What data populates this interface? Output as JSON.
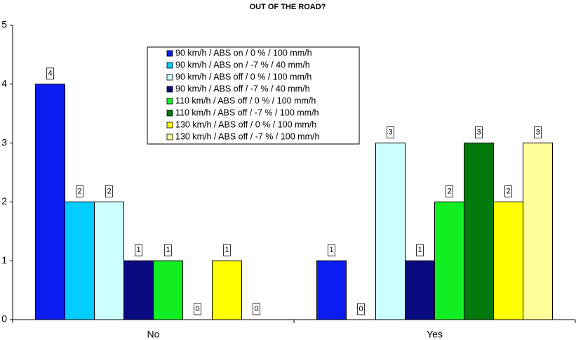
{
  "chart_data": {
    "type": "bar",
    "title": "OUT OF THE ROAD?",
    "categories": [
      "No",
      "Yes"
    ],
    "series": [
      {
        "name": "90 km/h / ABS on / 0 % / 100 mm/h",
        "color": "#0a1cf0",
        "values": [
          4,
          1
        ]
      },
      {
        "name": "90 km/h / ABS on / -7 % / 40 mm/h",
        "color": "#00ccff",
        "values": [
          2,
          0
        ]
      },
      {
        "name": "90 km/h / ABS off / 0 % / 100 mm/h",
        "color": "#ccffff",
        "values": [
          2,
          3
        ]
      },
      {
        "name": "90 km/h / ABS off / -7 % / 40 mm/h",
        "color": "#0a0a80",
        "values": [
          1,
          1
        ]
      },
      {
        "name": "110 km/h / ABS off / 0 % / 100 mm/h",
        "color": "#11ee22",
        "values": [
          1,
          2
        ]
      },
      {
        "name": "110 km/h / ABS off / -7 % / 100 mm/h",
        "color": "#007a0a",
        "values": [
          0,
          3
        ]
      },
      {
        "name": "130 km/h / ABS off / 0 % / 100 mm/h",
        "color": "#ffff00",
        "values": [
          1,
          2
        ]
      },
      {
        "name": "130 km/h / ABS off / -7 % / 100 mm/h",
        "color": "#ffff99",
        "values": [
          0,
          3
        ]
      }
    ],
    "ylim": [
      0,
      5
    ],
    "yticks": [
      0,
      1,
      2,
      3,
      4,
      5
    ],
    "grid": false,
    "legend": "top-center"
  }
}
